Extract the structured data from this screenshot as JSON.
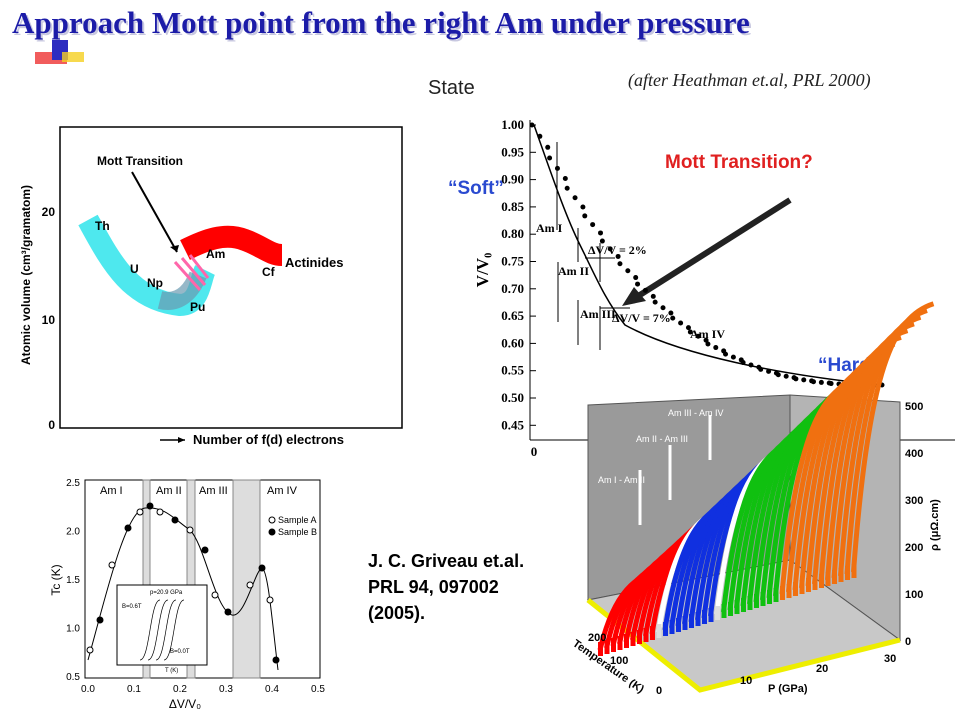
{
  "header": {
    "title": "Approach  Mott point from the right Am under pressure",
    "citation": "(after Heathman et.al, PRL 2000)",
    "state": "State"
  },
  "volume_figure": {
    "y_label": "Atomic volume (cm³/gramatom)",
    "y_ticks": [
      "20",
      "10",
      "0"
    ],
    "x_label": "Number of f(d) electrons",
    "mott_label": "Mott Transition",
    "elements": [
      "Th",
      "U",
      "Np",
      "Pu",
      "Am",
      "Cf"
    ],
    "series_label": "Actinides"
  },
  "compression_figure": {
    "y_label": "V/V₀",
    "y_ticks": [
      "1.00",
      "0.95",
      "0.90",
      "0.85",
      "0.80",
      "0.75",
      "0.70",
      "0.65",
      "0.60",
      "0.55",
      "0.50",
      "0.45"
    ],
    "x_ticks": [
      "0"
    ],
    "phases": [
      "Am I",
      "Am II",
      "Am III",
      "Am IV"
    ],
    "steps": [
      "ΔV/V = 2%",
      "ΔV/V = 7%"
    ],
    "question": "Mott Transition?",
    "soft": "“Soft”",
    "hard": "“Hard”"
  },
  "resistivity_figure": {
    "z_ticks": [
      "500",
      "400",
      "300",
      "200",
      "100",
      "0"
    ],
    "z_label": "ρ (μΩ.cm)",
    "transitions": [
      "Am III - Am IV",
      "Am II - Am III",
      "Am I - Am II"
    ],
    "t_label": "Temperature (K)",
    "t_ticks": [
      "200",
      "100",
      "0"
    ],
    "p_label": "P (GPa)",
    "p_ticks": [
      "10",
      "20",
      "30"
    ]
  },
  "tc_figure": {
    "y_label": "Tc (K)",
    "y_ticks": [
      "2.5",
      "2.0",
      "1.5",
      "1.0",
      "0.5"
    ],
    "x_label": "ΔV/V₀",
    "x_ticks": [
      "0.0",
      "0.1",
      "0.2",
      "0.3",
      "0.4",
      "0.5"
    ],
    "phases": [
      "Am I",
      "Am II",
      "Am III",
      "Am IV"
    ],
    "legend": [
      "Sample A",
      "Sample B"
    ],
    "inset": [
      "p=20.9 GPa",
      "B=0.6T",
      "B=0.0T",
      "T (K)"
    ]
  },
  "reference": [
    "J. C. Griveau et.al.",
    "PRL 94, 097002",
    "(2005)."
  ]
}
